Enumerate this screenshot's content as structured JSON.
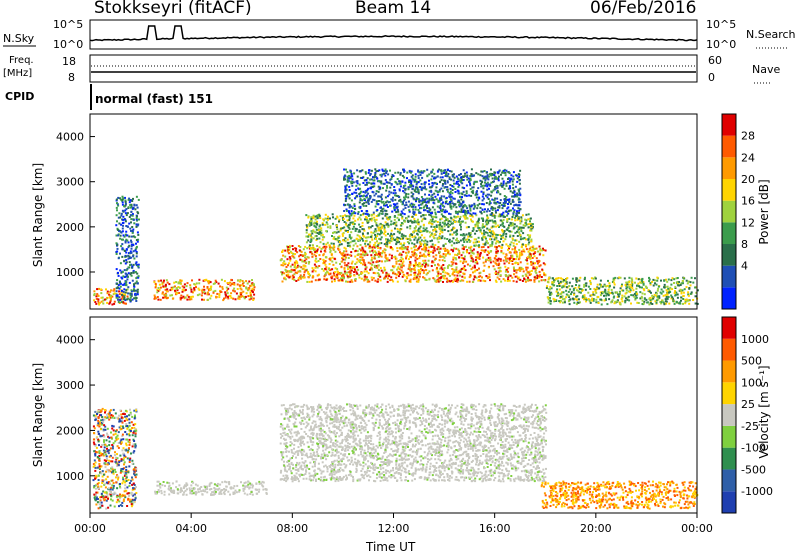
{
  "header": {
    "station": "Stokkseyri (fitACF)",
    "beam": "Beam 14",
    "date": "06/Feb/2016"
  },
  "panels": {
    "nsky_label": "N.Sky",
    "nsky_ticks": [
      "10^5",
      "10^0"
    ],
    "nsearch_label": "N.Search",
    "nsearch_ticks": [
      "10^5",
      "10^0"
    ],
    "freq_label_1": "Freq.",
    "freq_label_2": "[MHz]",
    "freq_ticks": [
      "18",
      "8"
    ],
    "nave_label": "Nave",
    "nave_ticks": [
      "60",
      "0"
    ],
    "cpid_label": "CPID",
    "cpid_text": "normal (fast) 151"
  },
  "chart_data": [
    {
      "type": "heatmap",
      "name": "power",
      "ylabel": "Slant Range [km]",
      "ylim": [
        180,
        4500
      ],
      "yticks": [
        "1000",
        "2000",
        "3000",
        "4000"
      ],
      "colorbar_label": "Power [dB]",
      "colorbar_ticks": [
        "28",
        "24",
        "20",
        "16",
        "12",
        "8",
        "4"
      ],
      "colorbar_colors": [
        "#0022ff",
        "#1f4fb5",
        "#2a6f4a",
        "#3b9c4c",
        "#9fd23e",
        "#ffd400",
        "#ff9a00",
        "#ff5a00",
        "#e00000"
      ],
      "regions": [
        {
          "x": [
            0.1,
            1.5
          ],
          "y": [
            300,
            650
          ],
          "level": "high"
        },
        {
          "x": [
            1.0,
            1.9
          ],
          "y": [
            350,
            2700
          ],
          "level": "low"
        },
        {
          "x": [
            2.5,
            6.5
          ],
          "y": [
            400,
            850
          ],
          "level": "high"
        },
        {
          "x": [
            7.5,
            18.0
          ],
          "y": [
            800,
            1600
          ],
          "level": "high"
        },
        {
          "x": [
            8.5,
            17.5
          ],
          "y": [
            1600,
            2300
          ],
          "level": "medium"
        },
        {
          "x": [
            10.0,
            17.0
          ],
          "y": [
            2300,
            3300
          ],
          "level": "low"
        },
        {
          "x": [
            18.0,
            24.0
          ],
          "y": [
            300,
            900
          ],
          "level": "medium"
        }
      ]
    },
    {
      "type": "heatmap",
      "name": "velocity",
      "ylabel": "Slant Range [km]",
      "xlabel": "Time UT",
      "ylim": [
        180,
        4500
      ],
      "yticks": [
        "1000",
        "2000",
        "3000",
        "4000"
      ],
      "xticks": [
        "00:00",
        "04:00",
        "08:00",
        "12:00",
        "16:00",
        "20:00",
        "00:00"
      ],
      "colorbar_label": "Velocity [m s⁻¹]",
      "colorbar_ticks": [
        "1000",
        "500",
        "100",
        "25",
        "-25",
        "-100",
        "-500",
        "-1000"
      ],
      "colorbar_colors": [
        "#1f3fb0",
        "#2f5fa8",
        "#2f8f4f",
        "#7fd03f",
        "#c8c8c0",
        "#ffd400",
        "#ff9a00",
        "#ff5a00",
        "#e00000"
      ],
      "regions": [
        {
          "x": [
            0.1,
            1.8
          ],
          "y": [
            300,
            2500
          ],
          "level": "mixed"
        },
        {
          "x": [
            2.5,
            7.0
          ],
          "y": [
            600,
            900
          ],
          "level": "gray"
        },
        {
          "x": [
            7.5,
            18.0
          ],
          "y": [
            900,
            2600
          ],
          "level": "gray"
        },
        {
          "x": [
            17.8,
            24.0
          ],
          "y": [
            300,
            900
          ],
          "level": "orange"
        }
      ]
    }
  ]
}
